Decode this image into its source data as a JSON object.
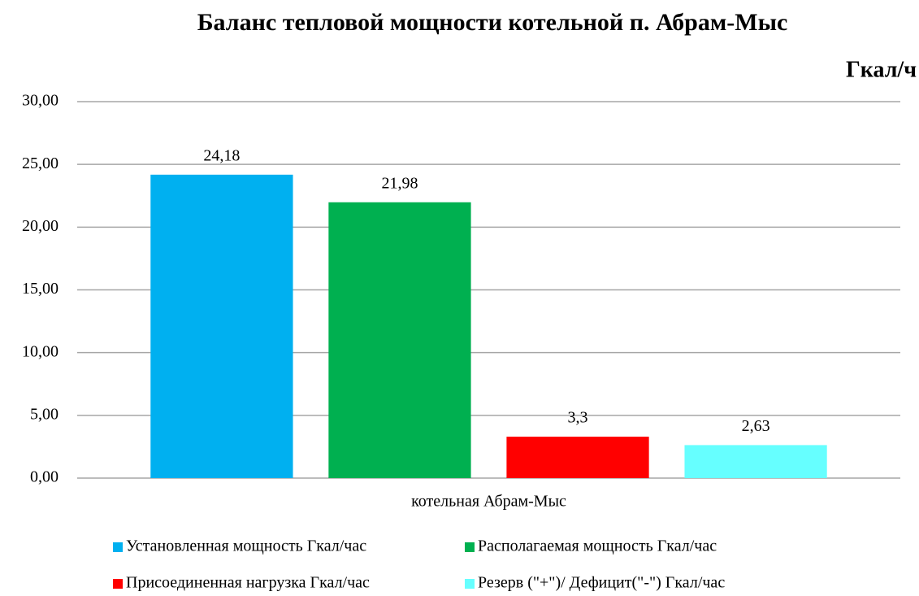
{
  "chart_data": {
    "type": "bar",
    "title": "Баланс тепловой мощности котельной п. Абрам-Мыс",
    "y_unit": "Гкал/ч",
    "categories": [
      "котельная Абрам-Мыс"
    ],
    "series": [
      {
        "name": "Установленная мощность Гкал/час",
        "color": "#00b0f0",
        "values": [
          24.18
        ],
        "value_labels": [
          "24,18"
        ]
      },
      {
        "name": "Располагаемая мощность Гкал/час",
        "color": "#00b050",
        "values": [
          21.98
        ],
        "value_labels": [
          "21,98"
        ]
      },
      {
        "name": "Присоединенная нагрузка  Гкал/час",
        "color": "#ff0000",
        "values": [
          3.3
        ],
        "value_labels": [
          "3,3"
        ]
      },
      {
        "name": "Резерв (\"+\")/ Дефицит(\"-\") Гкал/час",
        "color": "#66ffff",
        "values": [
          2.63
        ],
        "value_labels": [
          "2,63"
        ]
      }
    ],
    "ylim": [
      0,
      30
    ],
    "yticks": [
      {
        "value": 0,
        "label": "0,00"
      },
      {
        "value": 5,
        "label": "5,00"
      },
      {
        "value": 10,
        "label": "10,00"
      },
      {
        "value": 15,
        "label": "15,00"
      },
      {
        "value": 20,
        "label": "20,00"
      },
      {
        "value": 25,
        "label": "25,00"
      },
      {
        "value": 30,
        "label": "30,00"
      }
    ],
    "grid": true
  }
}
